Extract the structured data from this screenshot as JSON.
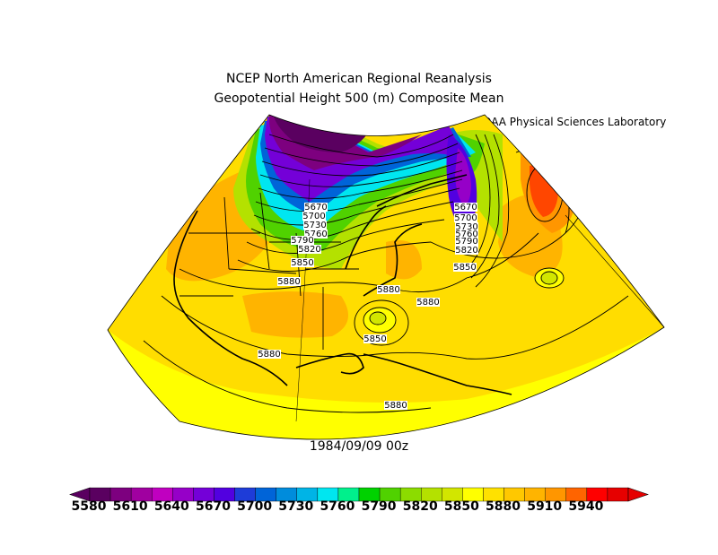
{
  "title_line1": "NCEP North American Regional Reanalysis",
  "title_line2": "Geopotential Height 500 (m) Composite Mean",
  "credit": {
    "noaa": "NOAA",
    "lab": "Physical Sciences Laboratory"
  },
  "datestamp": "1984/09/09 00z",
  "contour_labels": {
    "west_stack": [
      "5670",
      "5700",
      "5730",
      "5760",
      "5790",
      "5820",
      "5850",
      "5880"
    ],
    "east_stack": [
      "5670",
      "5700",
      "5730",
      "5760",
      "5790",
      "5820",
      "5850"
    ],
    "other": [
      "5880",
      "5880",
      "5850",
      "5880",
      "5880"
    ]
  },
  "colorbar": {
    "labels": [
      "5580",
      "5610",
      "5640",
      "5670",
      "5700",
      "5730",
      "5760",
      "5790",
      "5820",
      "5850",
      "5880",
      "5910",
      "5940"
    ],
    "colors": [
      "#5a0060",
      "#7d007f",
      "#a000a0",
      "#c000c0",
      "#9600c8",
      "#7400d8",
      "#5200e0",
      "#1e3cd8",
      "#0064d8",
      "#008cdc",
      "#00b4e6",
      "#00e6f0",
      "#00f08c",
      "#00d200",
      "#50d200",
      "#8cdc00",
      "#b4e100",
      "#d2e600",
      "#ffff00",
      "#ffe100",
      "#ffc800",
      "#ffb400",
      "#ff9600",
      "#ff6400",
      "#ff0000",
      "#e60000"
    ]
  }
}
